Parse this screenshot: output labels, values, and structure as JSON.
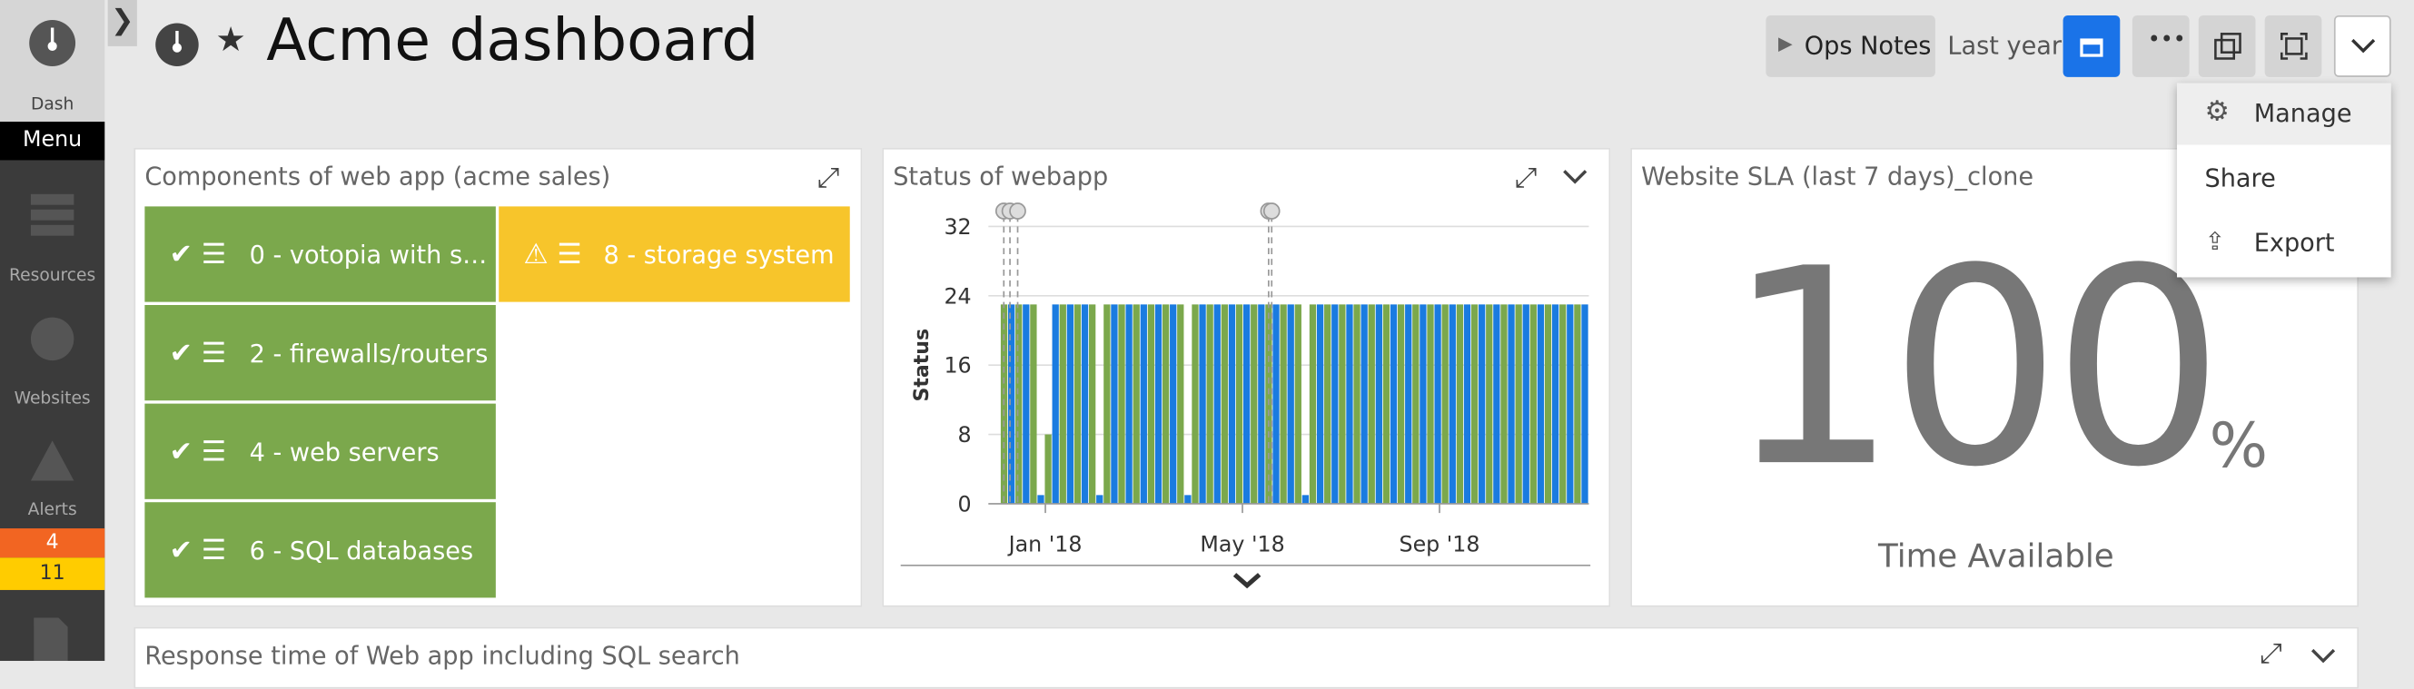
{
  "sidebar": {
    "items": [
      "Dash",
      "Menu",
      "Resources",
      "Websites",
      "Alerts"
    ],
    "alert_counts": [
      4,
      11
    ]
  },
  "header": {
    "title": "Acme dashboard",
    "ops_notes": "Ops Notes",
    "range": "Last year"
  },
  "menu": {
    "items": [
      "Manage",
      "Share",
      "Export"
    ]
  },
  "widgets": [
    {
      "title": "Components of web app (acme sales)",
      "columns": [
        [
          {
            "label": "0 - votopia with s…",
            "color": "#7ba84c"
          },
          {
            "label": "2 - firewalls/routers",
            "color": "#7ba84c"
          },
          {
            "label": "4 - web servers",
            "color": "#7ba84c"
          },
          {
            "label": "6 - SQL databases",
            "color": "#7ba84c"
          }
        ],
        [
          {
            "label": "8 - storage system",
            "color": "#f7c52b"
          }
        ]
      ]
    },
    {
      "title": "Status of webapp",
      "chart_data": {
        "type": "bar",
        "y_label": "Status",
        "ylim": [
          0,
          32
        ],
        "yticks": [
          0,
          8,
          16,
          24,
          32
        ],
        "xticks": [
          "Jan '18",
          "May '18",
          "Sep '18"
        ],
        "series": [
          {
            "color": "#7ba84c",
            "values": [
              23,
              23,
              23,
              8,
              23,
              23,
              23,
              23,
              23,
              23,
              23,
              23,
              23,
              23,
              23,
              23,
              23,
              23,
              23,
              23,
              23,
              23,
              23,
              23,
              23,
              23,
              23,
              23,
              23,
              23,
              23,
              23,
              23,
              23,
              23,
              23,
              23,
              23,
              23,
              23
            ]
          },
          {
            "color": "#1a7be0",
            "values": [
              23,
              23,
              1,
              23,
              23,
              23,
              1,
              23,
              23,
              23,
              23,
              23,
              1,
              23,
              23,
              23,
              23,
              23,
              23,
              23,
              1,
              23,
              23,
              23,
              23,
              23,
              23,
              23,
              23,
              23,
              23,
              23,
              23,
              23,
              23,
              23,
              23,
              23,
              23,
              23
            ]
          }
        ]
      }
    },
    {
      "title": "Website SLA (last 7 days)_clone",
      "value": 100,
      "unit": "%",
      "caption": "Time Available"
    },
    {
      "title": "Response time of Web app including SQL search"
    }
  ]
}
